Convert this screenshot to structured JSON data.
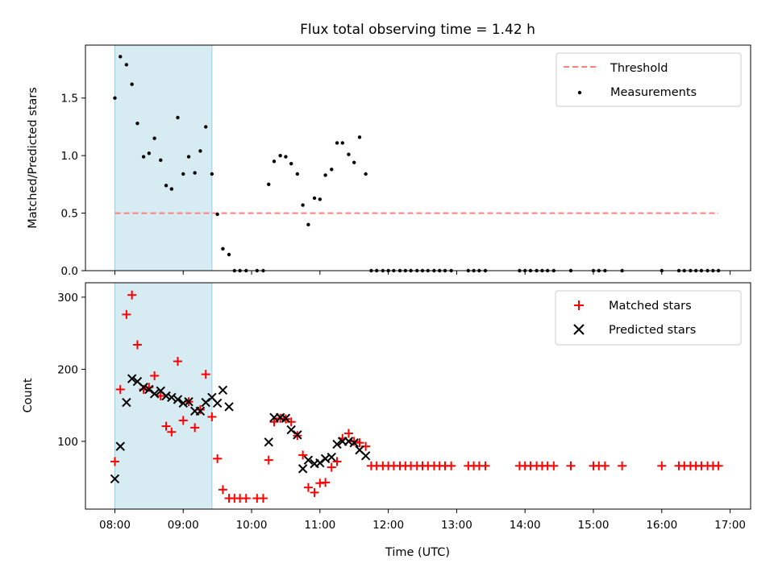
{
  "chart_data": [
    {
      "type": "scatter",
      "title": "Flux total observing time = 1.42 h",
      "xlabel": "",
      "ylabel": "Matched/Predicted stars",
      "xlim": [
        7.57,
        17.3
      ],
      "ylim": [
        0.0,
        1.96
      ],
      "xticks": [
        8,
        9,
        10,
        11,
        12,
        13,
        14,
        15,
        16,
        17
      ],
      "xtick_labels": [
        "",
        "",
        "",
        "",
        "",
        "",
        "",
        "",
        "",
        ""
      ],
      "yticks": [
        0.0,
        0.5,
        1.0,
        1.5
      ],
      "ytick_labels": [
        "0.0",
        "0.5",
        "1.0",
        "1.5"
      ],
      "shaded_span": [
        8.0,
        9.42
      ],
      "threshold": {
        "name": "Threshold",
        "value": 0.5,
        "x_range": [
          8.0,
          16.83
        ],
        "color": "#ff7f7f",
        "style": "dashed"
      },
      "series": [
        {
          "name": "Measurements",
          "marker": "dot",
          "color": "#000000",
          "x": [
            8.0,
            8.08,
            8.17,
            8.25,
            8.33,
            8.42,
            8.5,
            8.58,
            8.67,
            8.75,
            8.83,
            8.92,
            9.0,
            9.08,
            9.17,
            9.25,
            9.33,
            9.42,
            9.5,
            9.58,
            9.67,
            9.75,
            9.83,
            9.92,
            10.08,
            10.17,
            10.25,
            10.33,
            10.42,
            10.5,
            10.58,
            10.67,
            10.75,
            10.83,
            10.92,
            11.0,
            11.08,
            11.17,
            11.25,
            11.33,
            11.42,
            11.5,
            11.58,
            11.67,
            11.75,
            11.83,
            11.92,
            12.0,
            12.08,
            12.17,
            12.25,
            12.33,
            12.42,
            12.5,
            12.58,
            12.67,
            12.75,
            12.83,
            12.92,
            13.17,
            13.25,
            13.33,
            13.42,
            13.92,
            14.0,
            14.08,
            14.17,
            14.25,
            14.33,
            14.42,
            14.67,
            15.0,
            15.08,
            15.17,
            15.42,
            16.0,
            16.25,
            16.33,
            16.42,
            16.5,
            16.58,
            16.67,
            16.75,
            16.83
          ],
          "y": [
            1.5,
            1.86,
            1.79,
            1.62,
            1.28,
            0.99,
            1.02,
            1.15,
            0.96,
            0.74,
            0.71,
            1.33,
            0.84,
            0.99,
            0.85,
            1.04,
            1.25,
            0.84,
            0.49,
            0.19,
            0.14,
            0.0,
            0.0,
            0.0,
            0.0,
            0.0,
            0.75,
            0.95,
            1.0,
            0.99,
            0.93,
            0.84,
            0.57,
            0.4,
            0.63,
            0.62,
            0.83,
            0.88,
            1.11,
            1.11,
            1.01,
            0.94,
            1.16,
            0.84,
            0.0,
            0.0,
            0.0,
            0.0,
            0.0,
            0.0,
            0.0,
            0.0,
            0.0,
            0.0,
            0.0,
            0.0,
            0.0,
            0.0,
            0.0,
            0.0,
            0.0,
            0.0,
            0.0,
            0.0,
            0.0,
            0.0,
            0.0,
            0.0,
            0.0,
            0.0,
            0.0,
            0.0,
            0.0,
            0.0,
            0.0,
            0.0,
            0.0,
            0.0,
            0.0,
            0.0,
            0.0,
            0.0,
            0.0,
            0.0
          ]
        }
      ],
      "legend": {
        "placement": "top-right",
        "entries": [
          "Threshold",
          "Measurements"
        ]
      }
    },
    {
      "type": "scatter",
      "title": "",
      "xlabel": "Time (UTC)",
      "ylabel": "Count",
      "xlim": [
        7.57,
        17.3
      ],
      "ylim": [
        6,
        320
      ],
      "xticks": [
        8,
        9,
        10,
        11,
        12,
        13,
        14,
        15,
        16,
        17
      ],
      "xtick_labels": [
        "08:00",
        "09:00",
        "10:00",
        "11:00",
        "12:00",
        "13:00",
        "14:00",
        "15:00",
        "16:00",
        "17:00"
      ],
      "yticks": [
        100,
        200,
        300
      ],
      "ytick_labels": [
        "100",
        "200",
        "300"
      ],
      "shaded_span": [
        8.0,
        9.42
      ],
      "series": [
        {
          "name": "Matched stars",
          "marker": "plus",
          "color": "#ff0000",
          "x": [
            8.0,
            8.08,
            8.17,
            8.25,
            8.33,
            8.42,
            8.5,
            8.58,
            8.67,
            8.75,
            8.83,
            8.92,
            9.0,
            9.08,
            9.17,
            9.25,
            9.33,
            9.42,
            9.5,
            9.58,
            9.67,
            9.75,
            9.83,
            9.92,
            10.08,
            10.17,
            10.25,
            10.33,
            10.42,
            10.5,
            10.58,
            10.67,
            10.75,
            10.83,
            10.92,
            11.0,
            11.08,
            11.17,
            11.25,
            11.33,
            11.42,
            11.5,
            11.58,
            11.67,
            11.75,
            11.83,
            11.92,
            12.0,
            12.08,
            12.17,
            12.25,
            12.33,
            12.42,
            12.5,
            12.58,
            12.67,
            12.75,
            12.83,
            12.92,
            13.17,
            13.25,
            13.33,
            13.42,
            13.92,
            14.0,
            14.08,
            14.17,
            14.25,
            14.33,
            14.42,
            14.67,
            15.0,
            15.08,
            15.17,
            15.42,
            16.0,
            16.25,
            16.33,
            16.42,
            16.5,
            16.58,
            16.67,
            16.75,
            16.83
          ],
          "y": [
            72,
            172,
            276,
            303,
            234,
            172,
            175,
            191,
            163,
            121,
            113,
            211,
            129,
            155,
            119,
            144,
            193,
            134,
            76,
            33,
            21,
            21,
            21,
            21,
            21,
            21,
            74,
            127,
            132,
            131,
            127,
            108,
            81,
            36,
            29,
            42,
            43,
            64,
            72,
            104,
            111,
            100,
            98,
            93,
            66,
            66,
            66,
            66,
            66,
            66,
            66,
            66,
            66,
            66,
            66,
            66,
            66,
            66,
            66,
            66,
            66,
            66,
            66,
            66,
            66,
            66,
            66,
            66,
            66,
            66,
            66,
            66,
            66,
            66,
            66,
            66,
            66,
            66,
            66,
            66,
            66,
            66,
            66,
            66
          ]
        },
        {
          "name": "Predicted stars",
          "marker": "x",
          "color": "#000000",
          "x": [
            8.0,
            8.08,
            8.17,
            8.25,
            8.33,
            8.42,
            8.5,
            8.58,
            8.67,
            8.75,
            8.83,
            8.92,
            9.0,
            9.08,
            9.17,
            9.25,
            9.33,
            9.42,
            9.5,
            9.58,
            9.67,
            10.25,
            10.33,
            10.42,
            10.5,
            10.58,
            10.67,
            10.75,
            10.83,
            10.92,
            11.0,
            11.08,
            11.17,
            11.25,
            11.33,
            11.42,
            11.5,
            11.58,
            11.67
          ],
          "y": [
            48,
            93,
            154,
            187,
            183,
            175,
            172,
            166,
            170,
            163,
            161,
            158,
            153,
            155,
            142,
            142,
            154,
            161,
            153,
            171,
            148,
            99,
            133,
            133,
            132,
            116,
            109,
            62,
            74,
            69,
            70,
            76,
            78,
            96,
            100,
            100,
            98,
            88,
            80
          ]
        }
      ],
      "legend": {
        "placement": "top-right",
        "entries": [
          "Matched stars",
          "Predicted stars"
        ]
      }
    }
  ]
}
